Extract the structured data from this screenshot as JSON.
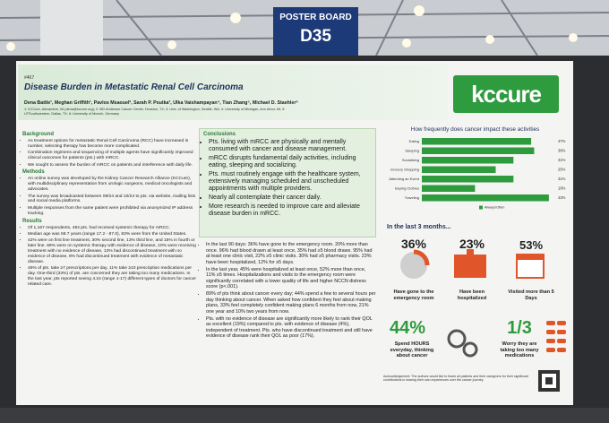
{
  "sign": {
    "label": "POSTER BOARD",
    "code": "D35"
  },
  "poster": {
    "number": "#467",
    "title": "Disease Burden in Metastatic Renal Cell Carcinoma",
    "authors": "Dena Battle¹, Meghan Griffith¹, Pavlos Msaouel², Sarah P. Psutka³, Ulka Vaishampayan⁴, Tian Zhang⁵, Michael D. Staehler⁶",
    "affiliations": "1: KCCure, Alexandria, VA (dena@kccure.org); 2: MD Anderson Cancer Center, Houston, TX; 3: Univ. of Washington, Seattle, WA; 4: University of Michigan, Ann Arbor, MI; 5: UTSouthwestern, Dallas, TX; 6: University of Munich, Germany",
    "logo": "kccure",
    "background": {
      "heading": "Background",
      "items": [
        "As treatment options for metastatic Renal Cell Carcinoma (RCC) have increased in number, selecting therapy has become more complicated.",
        "Combination regimens and sequencing of multiple agents have significantly improved clinical outcomes for patients (pts.) with mRCC.",
        "We sought to assess the burden of mRCC on patients and interference with daily life."
      ]
    },
    "methods": {
      "heading": "Methods",
      "items": [
        "An online survey was developed by the Kidney Cancer Research Alliance (KCCure), with multidisciplinary representation from urologic surgeons, medical oncologists and advocates.",
        "The survey was broadcasted between 09/24 and 10/24 to pts. via website, mailing lists and social media platforms.",
        "Multiple responses from the same patient were prohibited via anonymized IP address tracking."
      ]
    },
    "results": {
      "heading": "Results",
      "items": [
        "Of 1,167 respondents, 492 pts. had received systemic therapy for mRCC.",
        "Median age was 58.7 years (range 17.2 - 87.0), 83% were from the United States.",
        "42% were on first line treatment, 30% second line, 13% third line, and 15% in fourth or later line. 69% were on systemic therapy with evidence of disease, 10% were receiving treatment with no evidence of disease, 13% had discontinued treatment with no evidence of disease, 8% had discontinued treatment with evidence of metastatic disease.",
        "45% of pts. take ≥7 prescriptions per day, 11% take ≥10 prescription medications per day. One-third (33%) of pts. are concerned they are taking too many medications. In the last year, pts reported seeing 4.24 (range 1-17) different types of doctors for cancer related care."
      ]
    },
    "conclusions": {
      "heading": "Conclusions",
      "items": [
        "Pts. living with mRCC are physically and mentally consumed with cancer and disease management.",
        "mRCC disrupts fundamental daily activities, including eating, sleeping and socializing.",
        "Pts. must routinely engage with the healthcare system, extensively managing scheduled and unscheduled appointments with multiple providers.",
        "Nearly all contemplate their cancer daily.",
        "More research is needed to improve care and alleviate disease burden in mRCC."
      ]
    },
    "findings": [
      "In the last 90 days: 36% have gone to the emergency room. 20% more than once. 96% had blood drawn at least once, 35% had ≥5 blood draws. 95% had at least one clinic visit, 22% ≥5 clinic visits. 30% had ≥5 pharmacy visits. 23% have been hospitalized, 12% for ≥5 days.",
      "In the last year, 45% were hospitalized at least once, 52% more than once, 11% ≥5 times. Hospitalizations and visits to the emergency room were significantly correlated with a lower quality of life and higher NCCN distress score (p<.001).",
      "89% of pts think about cancer every day; 44% spend a few to several hours per day thinking about cancer. When asked how confident they feel about making plans, 33% feel completely confident making plans 6 months from now, 21% one year and 10% two years from now.",
      "Pts. with no evidence of disease are significantly more likely to rank their QOL as excellent (19%) compared to pts. with evidence of disease (4%), independent of treatment. Pts. who have discontinued treatment and still have evidence of disease rank their QOL as poor (17%)."
    ],
    "chart_data": {
      "type": "bar",
      "title": "How frequently does cancer impact these activities",
      "categories": [
        "Eating",
        "Sleeping",
        "Socializing",
        "Grocery Shopping",
        "Attending an Event",
        "Buying Clothes",
        "Traveling"
      ],
      "series": [
        {
          "name": "Always/Often",
          "color": "#2e9b3e",
          "values": [
            37,
            38,
            31,
            25,
            31,
            18,
            43
          ],
          "value_labels": [
            "37%",
            "38%",
            "31%",
            "25%",
            "31%",
            "18%",
            "43%"
          ]
        }
      ]
    },
    "stats_heading": "In the last 3 months...",
    "stats": [
      {
        "value": "36%",
        "label": "Have gone to the emergency room"
      },
      {
        "value": "23%",
        "label": "Have been hospitalized"
      },
      {
        "value": "53%",
        "label": "Visited more than 5 Days"
      },
      {
        "value": "44%",
        "label": "Spend HOURS everyday, thinking about cancer"
      },
      {
        "value": "1/3",
        "label": "Worry they are taking too many medications"
      }
    ],
    "acknowledgement": "Acknowledgement: The authors would like to thank all patients and their caregivers for their significant contributions in sharing their own experiences over the cancer journey."
  }
}
